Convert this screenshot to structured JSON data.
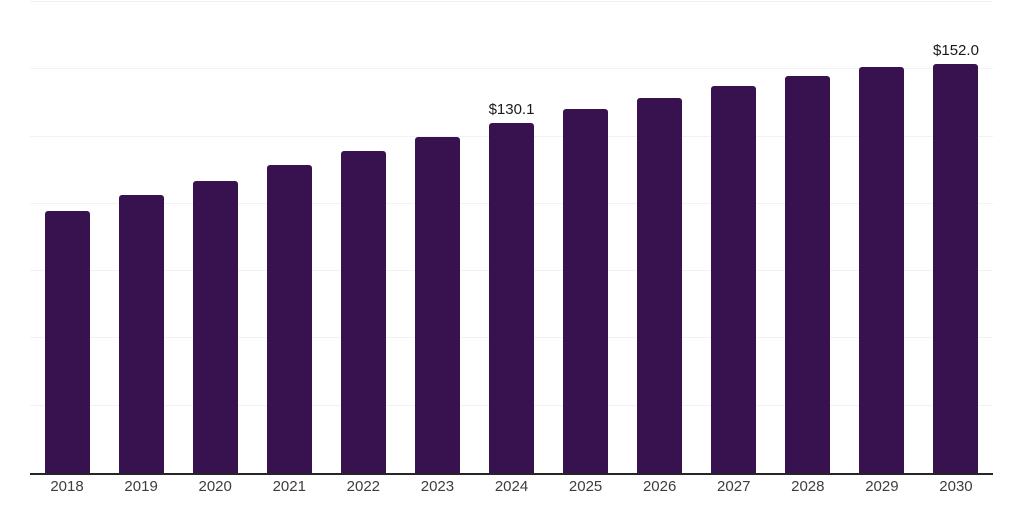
{
  "chart_data": {
    "type": "bar",
    "categories": [
      "2018",
      "2019",
      "2020",
      "2021",
      "2022",
      "2023",
      "2024",
      "2025",
      "2026",
      "2027",
      "2028",
      "2029",
      "2030"
    ],
    "values": [
      97.4,
      103.3,
      108.5,
      114.5,
      119.8,
      125.0,
      130.1,
      135.2,
      139.5,
      143.7,
      147.4,
      150.7,
      152.0
    ],
    "data_labels": [
      "",
      "",
      "",
      "",
      "",
      "",
      "$130.1",
      "",
      "",
      "",
      "",
      "",
      "$152.0"
    ],
    "title": "",
    "xlabel": "",
    "ylabel": "",
    "ylim": [
      0,
      175
    ],
    "gridline_step": 25,
    "grid": "horizontal",
    "legend": "none",
    "bar_color": "#38124f",
    "axis_color": "#262626",
    "gridline_color": "#f2f2f2",
    "x_label_color": "#3d3d3d",
    "value_label_color": "#1a1a1a"
  }
}
